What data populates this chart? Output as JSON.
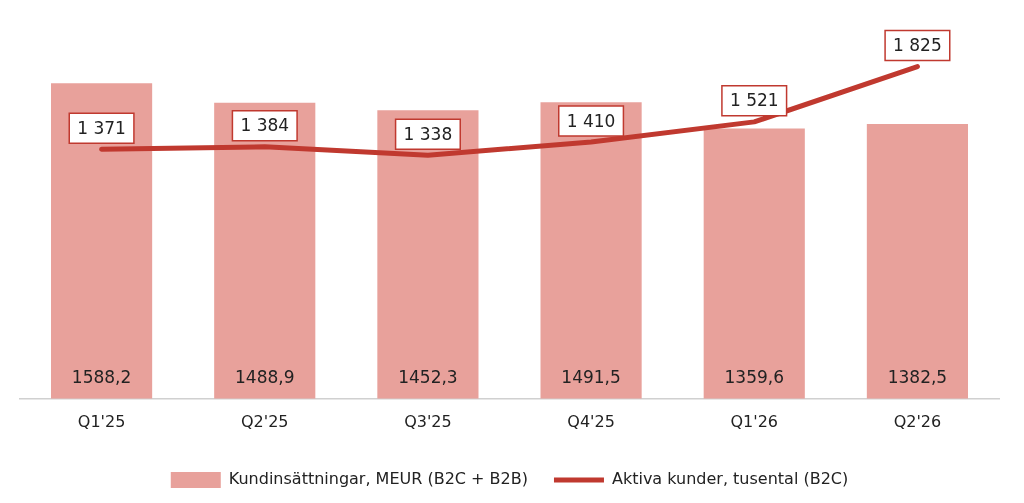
{
  "chart_data": {
    "type": "bar",
    "categories": [
      "Q1'25",
      "Q2'25",
      "Q3'25",
      "Q4'25",
      "Q1'26",
      "Q2'26"
    ],
    "series": [
      {
        "name": "Kundinsättningar, MEUR (B2C + B2B)",
        "color": "#e8a19b",
        "values": [
          1588.2,
          1488.9,
          1452.3,
          1491.5,
          1359.6,
          1382.5
        ],
        "value_labels": [
          "1588,2",
          "1488,9",
          "1452,3",
          "1491,5",
          "1359,6",
          "1382,5"
        ]
      },
      {
        "name": "Aktiva kunder, tusental (B2C)",
        "type": "line",
        "color": "#c0392f",
        "axis": "y2",
        "values": [
          1371,
          1384,
          1338,
          1410,
          1521,
          1825
        ],
        "value_labels": [
          "1 371",
          "1 384",
          "1 338",
          "1 410",
          "1 521",
          "1 825"
        ]
      }
    ],
    "data_labels": true,
    "legend": "bottom",
    "grid": false,
    "marker": "none"
  }
}
